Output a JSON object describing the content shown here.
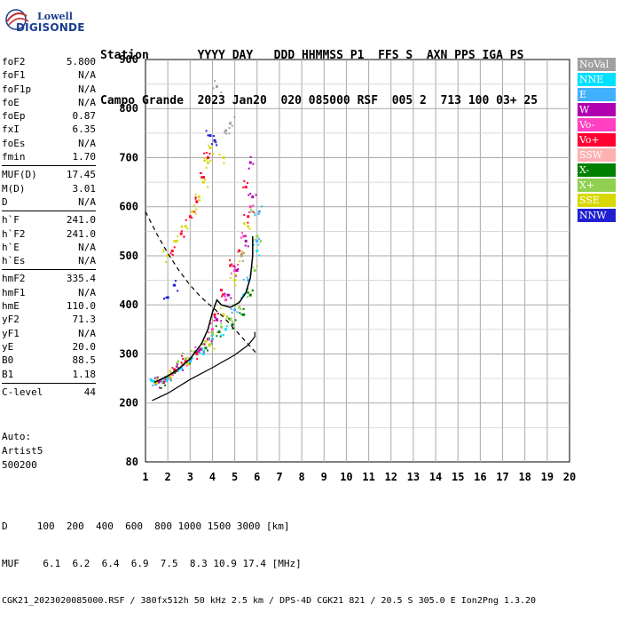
{
  "logo": {
    "line1": "Lowell",
    "line2": "DIGISONDE"
  },
  "header": {
    "row1": "Station       YYYY DAY   DDD HHMMSS P1  FFS S  AXN PPS IGA PS",
    "row2": "Campo Grande  2023 Jan20  020 085000 RSF  005 2  713 100 03+ 25"
  },
  "params_group1": [
    {
      "name": "foF2",
      "value": "5.800"
    },
    {
      "name": "foF1",
      "value": "N/A"
    },
    {
      "name": "foF1p",
      "value": "N/A"
    },
    {
      "name": "foE",
      "value": "N/A"
    },
    {
      "name": "foEp",
      "value": "0.87"
    },
    {
      "name": "fxI",
      "value": "6.35"
    },
    {
      "name": "foEs",
      "value": "N/A"
    },
    {
      "name": "fmin",
      "value": "1.70"
    }
  ],
  "params_group2": [
    {
      "name": "MUF(D)",
      "value": "17.45"
    },
    {
      "name": "M(D)",
      "value": "3.01"
    },
    {
      "name": "D",
      "value": "N/A"
    }
  ],
  "params_group3": [
    {
      "name": "h`F",
      "value": "241.0"
    },
    {
      "name": "h`F2",
      "value": "241.0"
    },
    {
      "name": "h`E",
      "value": "N/A"
    },
    {
      "name": "h`Es",
      "value": "N/A"
    }
  ],
  "params_group4": [
    {
      "name": "hmF2",
      "value": "335.4"
    },
    {
      "name": "hmF1",
      "value": "N/A"
    },
    {
      "name": "hmE",
      "value": "110.0"
    },
    {
      "name": "yF2",
      "value": "71.3"
    },
    {
      "name": "yF1",
      "value": "N/A"
    },
    {
      "name": "yE",
      "value": "20.0"
    },
    {
      "name": "B0",
      "value": "88.5"
    },
    {
      "name": "B1",
      "value": "1.18"
    }
  ],
  "params_group5": [
    {
      "name": "C-level",
      "value": "44"
    }
  ],
  "auto": [
    "Auto:",
    "Artist5",
    "500200"
  ],
  "legend": [
    {
      "label": "NoVal",
      "color": "#a0a0a0"
    },
    {
      "label": "NNE",
      "color": "#00e0ff"
    },
    {
      "label": "E",
      "color": "#40b0ff"
    },
    {
      "label": "W",
      "color": "#b000b0"
    },
    {
      "label": "Vo-",
      "color": "#ff40c0"
    },
    {
      "label": "Vo+",
      "color": "#ff0030"
    },
    {
      "label": "SSW",
      "color": "#ffb0b0"
    },
    {
      "label": "X-",
      "color": "#008000"
    },
    {
      "label": "X+",
      "color": "#90d050"
    },
    {
      "label": "SSE",
      "color": "#d8d800"
    },
    {
      "label": "NNW",
      "color": "#2020d0"
    }
  ],
  "footer": {
    "row1": "D     100  200  400  600  800 1000 1500 3000 [km]",
    "row2": "MUF    6.1  6.2  6.4  6.9  7.5  8.3 10.9 17.4 [MHz]",
    "row3": "CGK21_2023020085000.RSF / 380fx512h 50 kHz 2.5 km / DPS-4D CGK21 821 / 20.5 S 305.0 E Ion2Png 1.3.20"
  },
  "chart_data": {
    "type": "scatter",
    "xlim": [
      1,
      20
    ],
    "ylim": [
      80,
      900
    ],
    "x_ticks": [
      1,
      2,
      3,
      4,
      5,
      6,
      7,
      8,
      9,
      10,
      11,
      12,
      13,
      14,
      15,
      16,
      17,
      18,
      19,
      20
    ],
    "y_ticks": [
      80,
      200,
      300,
      400,
      500,
      600,
      700,
      800,
      900
    ],
    "grid": true,
    "echo_clusters": [
      {
        "name": "X+",
        "color": "#90d050",
        "points": [
          [
            1.6,
            245
          ],
          [
            2.0,
            255
          ],
          [
            2.4,
            275
          ],
          [
            2.8,
            290
          ],
          [
            3.2,
            305
          ],
          [
            3.6,
            320
          ],
          [
            4.0,
            340
          ],
          [
            4.4,
            355
          ],
          [
            4.8,
            370
          ],
          [
            5.2,
            395
          ],
          [
            5.6,
            425
          ],
          [
            5.9,
            470
          ],
          [
            6.0,
            540
          ],
          [
            5.8,
            590
          ]
        ]
      },
      {
        "name": "X-",
        "color": "#008000",
        "points": [
          [
            1.8,
            242
          ],
          [
            2.3,
            262
          ],
          [
            3.0,
            290
          ],
          [
            3.7,
            312
          ],
          [
            4.3,
            345
          ],
          [
            4.9,
            360
          ],
          [
            5.4,
            380
          ],
          [
            5.7,
            420
          ]
        ]
      },
      {
        "name": "Vo+",
        "color": "#ff0030",
        "points": [
          [
            1.5,
            242
          ],
          [
            1.9,
            252
          ],
          [
            2.3,
            268
          ],
          [
            2.8,
            285
          ],
          [
            3.3,
            300
          ],
          [
            3.8,
            330
          ],
          [
            4.1,
            380
          ],
          [
            4.4,
            430
          ],
          [
            4.8,
            480
          ],
          [
            5.2,
            510
          ],
          [
            5.6,
            580
          ],
          [
            5.5,
            640
          ]
        ]
      },
      {
        "name": "Vo-",
        "color": "#ff40c0",
        "points": [
          [
            1.7,
            245
          ],
          [
            2.2,
            258
          ],
          [
            2.7,
            278
          ],
          [
            3.4,
            305
          ],
          [
            4.0,
            350
          ],
          [
            4.6,
            410
          ],
          [
            5.0,
            470
          ],
          [
            5.4,
            540
          ],
          [
            5.7,
            600
          ]
        ]
      },
      {
        "name": "W",
        "color": "#b000b0",
        "points": [
          [
            1.6,
            243
          ],
          [
            2.5,
            270
          ],
          [
            3.5,
            310
          ],
          [
            4.2,
            370
          ],
          [
            4.7,
            420
          ],
          [
            5.1,
            470
          ],
          [
            5.5,
            530
          ],
          [
            5.8,
            620
          ],
          [
            5.7,
            690
          ]
        ]
      },
      {
        "name": "SSE",
        "color": "#d8d800",
        "points": [
          [
            1.5,
            241
          ],
          [
            2.1,
            255
          ],
          [
            2.9,
            280
          ],
          [
            3.9,
            320
          ],
          [
            4.5,
            380
          ],
          [
            5.0,
            450
          ],
          [
            5.3,
            500
          ],
          [
            5.6,
            560
          ],
          [
            4.5,
            700
          ],
          [
            3.8,
            690
          ]
        ]
      },
      {
        "name": "E",
        "color": "#40b0ff",
        "points": [
          [
            1.4,
            244
          ],
          [
            2.0,
            250
          ],
          [
            3.0,
            285
          ],
          [
            4.0,
            330
          ],
          [
            5.0,
            390
          ],
          [
            5.6,
            450
          ],
          [
            6.0,
            530
          ],
          [
            6.1,
            590
          ]
        ]
      },
      {
        "name": "NNE",
        "color": "#00e0ff",
        "points": [
          [
            1.3,
            245
          ],
          [
            1.8,
            250
          ],
          [
            2.6,
            272
          ],
          [
            3.6,
            300
          ],
          [
            4.6,
            350
          ],
          [
            5.4,
            420
          ],
          [
            6.0,
            510
          ]
        ]
      },
      {
        "name": "F2 second hop",
        "color": "#d8d800",
        "points": [
          [
            2.0,
            500
          ],
          [
            2.4,
            530
          ],
          [
            2.8,
            560
          ],
          [
            3.1,
            590
          ],
          [
            3.4,
            620
          ],
          [
            3.6,
            650
          ],
          [
            3.8,
            690
          ],
          [
            3.9,
            720
          ]
        ]
      },
      {
        "name": "F2 second hop red",
        "color": "#ff0030",
        "points": [
          [
            2.2,
            510
          ],
          [
            2.6,
            545
          ],
          [
            3.0,
            580
          ],
          [
            3.3,
            610
          ],
          [
            3.6,
            660
          ],
          [
            3.8,
            700
          ]
        ]
      },
      {
        "name": "NNW",
        "color": "#2020d0",
        "points": [
          [
            2.0,
            415
          ],
          [
            2.3,
            440
          ],
          [
            3.9,
            745
          ],
          [
            4.1,
            735
          ]
        ]
      },
      {
        "name": "NoVal",
        "color": "#a0a0a0",
        "points": [
          [
            4.6,
            755
          ],
          [
            4.8,
            770
          ],
          [
            4.2,
            845
          ],
          [
            5.3,
            500
          ]
        ]
      }
    ],
    "profile_curve": [
      [
        1.3,
        205
      ],
      [
        2.0,
        220
      ],
      [
        3.0,
        248
      ],
      [
        4.0,
        272
      ],
      [
        5.0,
        298
      ],
      [
        5.6,
        318
      ],
      [
        5.9,
        335
      ],
      [
        5.9,
        345
      ]
    ],
    "trace_curve": [
      [
        1.4,
        242
      ],
      [
        2.0,
        255
      ],
      [
        2.5,
        270
      ],
      [
        3.0,
        290
      ],
      [
        3.5,
        320
      ],
      [
        3.8,
        350
      ],
      [
        4.0,
        385
      ],
      [
        4.2,
        410
      ],
      [
        4.4,
        400
      ],
      [
        4.8,
        395
      ],
      [
        5.2,
        405
      ],
      [
        5.5,
        425
      ],
      [
        5.7,
        455
      ],
      [
        5.8,
        500
      ],
      [
        5.8,
        540
      ]
    ],
    "muf_curve": [
      [
        1.0,
        590
      ],
      [
        1.5,
        545
      ],
      [
        2.0,
        505
      ],
      [
        2.5,
        470
      ],
      [
        3.0,
        440
      ],
      [
        3.5,
        415
      ],
      [
        4.0,
        395
      ],
      [
        4.5,
        375
      ],
      [
        5.0,
        350
      ],
      [
        5.5,
        325
      ],
      [
        6.0,
        300
      ]
    ]
  }
}
